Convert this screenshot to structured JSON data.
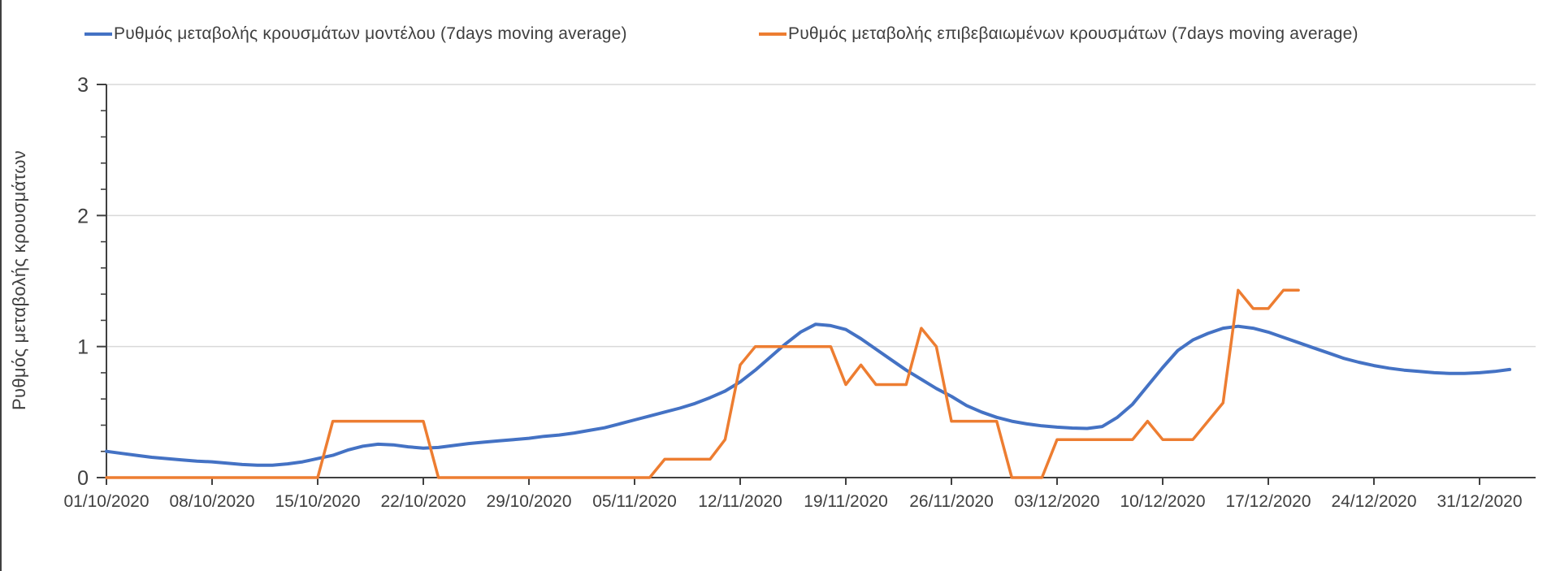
{
  "chart_data": {
    "type": "line",
    "title": "",
    "ylabel": "Ρυθμός μεταβολής κρουσμάτων",
    "xlabel": "",
    "ylim": [
      0,
      3
    ],
    "y_major_ticks": [
      0,
      1,
      2,
      3
    ],
    "y_minor_step": 0.2,
    "grid": "horizontal gridlines at y=1,2,3",
    "legend_position": "top",
    "x_unit": "days since 01/10/2020, daily points",
    "x_tick_labels": [
      "01/10/2020",
      "08/10/2020",
      "15/10/2020",
      "22/10/2020",
      "29/10/2020",
      "05/11/2020",
      "12/11/2020",
      "19/11/2020",
      "26/11/2020",
      "03/12/2020",
      "10/12/2020",
      "17/12/2020",
      "24/12/2020",
      "31/12/2020"
    ],
    "x_tick_days": [
      0,
      7,
      14,
      21,
      28,
      35,
      42,
      49,
      56,
      63,
      70,
      77,
      84,
      91
    ],
    "colors": {
      "model_line": "#4472C4",
      "confirmed_line": "#ED7D31",
      "grid": "#D9D9D9",
      "axis": "#404040",
      "text": "#3F3F3F"
    },
    "series": [
      {
        "id": "model",
        "name": "Ρυθμός μεταβολής κρουσμάτων μοντέλου (7days moving average)",
        "color": "#4472C4",
        "width": 4,
        "start_day": 0,
        "values": [
          0.2,
          0.185,
          0.17,
          0.155,
          0.145,
          0.135,
          0.125,
          0.12,
          0.11,
          0.1,
          0.095,
          0.095,
          0.105,
          0.12,
          0.145,
          0.17,
          0.21,
          0.24,
          0.255,
          0.25,
          0.235,
          0.225,
          0.23,
          0.245,
          0.26,
          0.27,
          0.28,
          0.29,
          0.3,
          0.315,
          0.325,
          0.34,
          0.36,
          0.38,
          0.41,
          0.44,
          0.47,
          0.5,
          0.53,
          0.565,
          0.61,
          0.66,
          0.73,
          0.82,
          0.92,
          1.02,
          1.11,
          1.17,
          1.16,
          1.13,
          1.06,
          0.98,
          0.9,
          0.82,
          0.75,
          0.68,
          0.62,
          0.55,
          0.5,
          0.46,
          0.43,
          0.41,
          0.395,
          0.385,
          0.378,
          0.375,
          0.39,
          0.46,
          0.56,
          0.7,
          0.84,
          0.97,
          1.05,
          1.1,
          1.14,
          1.155,
          1.14,
          1.11,
          1.07,
          1.03,
          0.99,
          0.95,
          0.91,
          0.88,
          0.855,
          0.835,
          0.82,
          0.81,
          0.8,
          0.795,
          0.795,
          0.8,
          0.81,
          0.825
        ]
      },
      {
        "id": "confirmed",
        "name": "Ρυθμός μεταβολής επιβεβαιωμένων κρουσμάτων (7days moving average)",
        "color": "#ED7D31",
        "width": 3.5,
        "start_day": 0,
        "values": [
          0,
          0,
          0,
          0,
          0,
          0,
          0,
          0,
          0,
          0,
          0,
          0,
          0,
          0,
          0,
          0.43,
          0.43,
          0.43,
          0.43,
          0.43,
          0.43,
          0.43,
          0,
          0,
          0,
          0,
          0,
          0,
          0,
          0,
          0,
          0,
          0,
          0,
          0,
          0,
          0,
          0.14,
          0.14,
          0.14,
          0.14,
          0.29,
          0.86,
          1,
          1,
          1,
          1,
          1,
          1,
          0.71,
          0.86,
          0.71,
          0.71,
          0.71,
          1.14,
          1,
          0.43,
          0.43,
          0.43,
          0.43,
          0,
          0,
          0,
          0.29,
          0.29,
          0.29,
          0.29,
          0.29,
          0.29,
          0.43,
          0.29,
          0.29,
          0.29,
          0.43,
          0.57,
          1.43,
          1.29,
          1.29,
          1.43,
          1.43
        ]
      }
    ]
  }
}
